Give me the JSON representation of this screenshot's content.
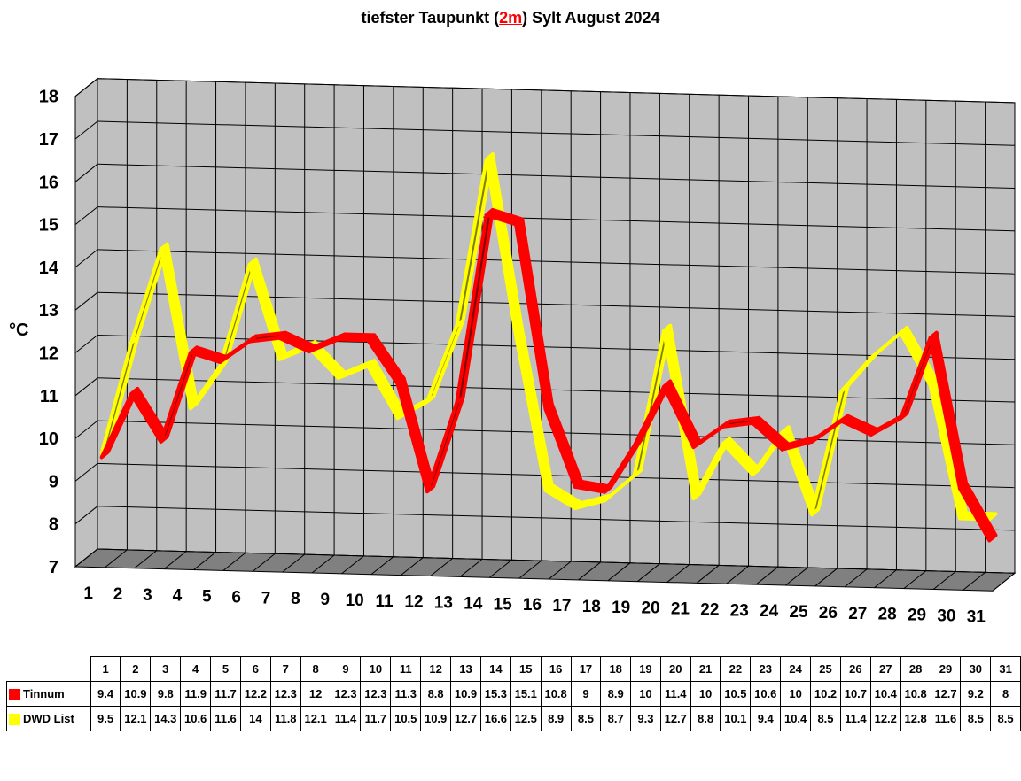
{
  "title": {
    "pre": "tiefster Taupunkt (",
    "highlight": "2m",
    "post": ") Sylt August 2024"
  },
  "chart_data": {
    "type": "line",
    "title": "tiefster Taupunkt (2m) Sylt August 2024",
    "ylabel": "°C",
    "xlabel": "",
    "ylim": [
      7,
      18
    ],
    "yticks": [
      7,
      8,
      9,
      10,
      11,
      12,
      13,
      14,
      15,
      16,
      17,
      18
    ],
    "categories": [
      "1",
      "2",
      "3",
      "4",
      "5",
      "6",
      "7",
      "8",
      "9",
      "10",
      "11",
      "12",
      "13",
      "14",
      "15",
      "16",
      "17",
      "18",
      "19",
      "20",
      "21",
      "22",
      "23",
      "24",
      "25",
      "26",
      "27",
      "28",
      "29",
      "30",
      "31"
    ],
    "grid": true,
    "style": "3d",
    "legend": "data table below chart",
    "series": [
      {
        "name": "Tinnum",
        "color": "#ff0000",
        "values": [
          "9.4",
          "10.9",
          "9.8",
          "11.9",
          "11.7",
          "12.2",
          "12.3",
          "12",
          "12.3",
          "12.3",
          "11.3",
          "8.8",
          "10.9",
          "15.3",
          "15.1",
          "10.8",
          "9",
          "8.9",
          "10",
          "11.4",
          "10",
          "10.5",
          "10.6",
          "10",
          "10.2",
          "10.7",
          "10.4",
          "10.8",
          "12.7",
          "9.2",
          "8"
        ]
      },
      {
        "name": "DWD List",
        "color": "#ffff00",
        "values": [
          "9.5",
          "12.1",
          "14.3",
          "10.6",
          "11.6",
          "14",
          "11.8",
          "12.1",
          "11.4",
          "11.7",
          "10.5",
          "10.9",
          "12.7",
          "16.6",
          "12.5",
          "8.9",
          "8.5",
          "8.7",
          "9.3",
          "12.7",
          "8.8",
          "10.1",
          "9.4",
          "10.4",
          "8.5",
          "11.4",
          "12.2",
          "12.8",
          "11.6",
          "8.5",
          "8.5"
        ]
      }
    ]
  }
}
